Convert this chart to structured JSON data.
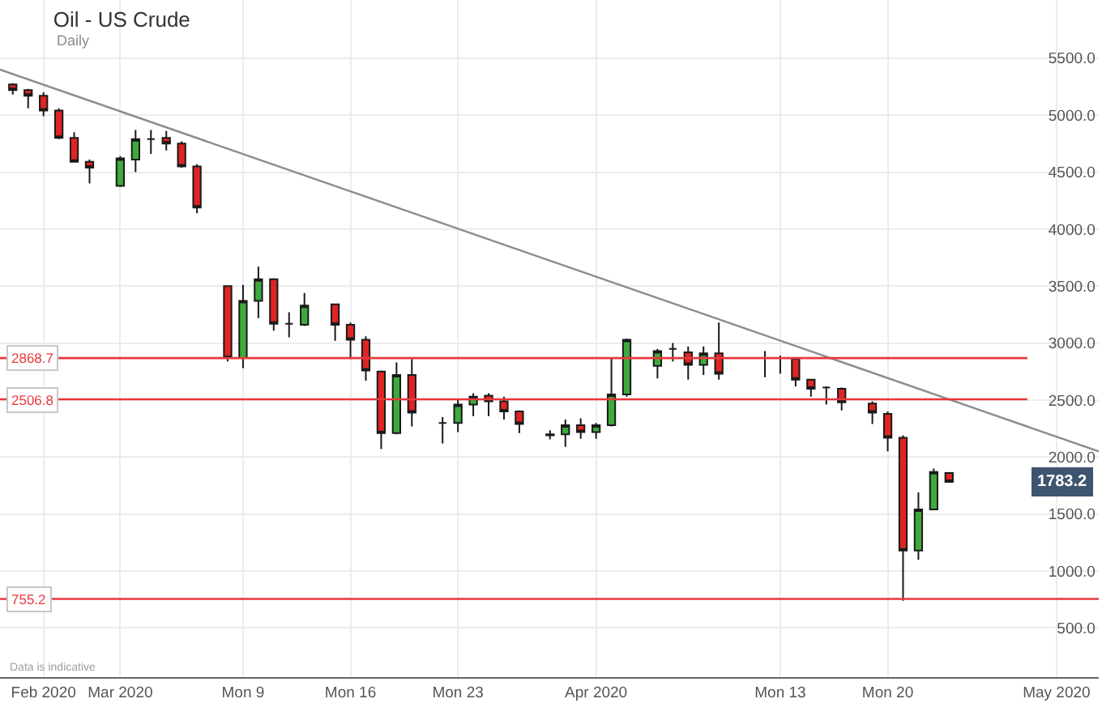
{
  "chart_data": {
    "type": "candlestick",
    "title": "Oil - US Crude",
    "subtitle": "Daily",
    "x": [
      "2020-02-23",
      "2020-02-24",
      "2020-02-25",
      "2020-02-26",
      "2020-02-27",
      "2020-02-28",
      "2020-03-01",
      "2020-03-02",
      "2020-03-03",
      "2020-03-04",
      "2020-03-05",
      "2020-03-06",
      "2020-03-08",
      "2020-03-09",
      "2020-03-10",
      "2020-03-11",
      "2020-03-12",
      "2020-03-13",
      "2020-03-15",
      "2020-03-16",
      "2020-03-17",
      "2020-03-18",
      "2020-03-19",
      "2020-03-20",
      "2020-03-22",
      "2020-03-23",
      "2020-03-24",
      "2020-03-25",
      "2020-03-26",
      "2020-03-27",
      "2020-03-29",
      "2020-03-30",
      "2020-03-31",
      "2020-04-01",
      "2020-04-02",
      "2020-04-03",
      "2020-04-05",
      "2020-04-06",
      "2020-04-07",
      "2020-04-08",
      "2020-04-09",
      "2020-04-12",
      "2020-04-13",
      "2020-04-14",
      "2020-04-15",
      "2020-04-16",
      "2020-04-17",
      "2020-04-19",
      "2020-04-20",
      "2020-04-21",
      "2020-04-22",
      "2020-04-23",
      "2020-04-24"
    ],
    "ohlc": [
      [
        5270,
        5280,
        5180,
        5220
      ],
      [
        5220,
        5230,
        5060,
        5170
      ],
      [
        5170,
        5200,
        4990,
        5040
      ],
      [
        5040,
        5060,
        4790,
        4800
      ],
      [
        4800,
        4850,
        4590,
        4590
      ],
      [
        4590,
        4610,
        4400,
        4540
      ],
      [
        4380,
        4640,
        4370,
        4620
      ],
      [
        4610,
        4870,
        4500,
        4790
      ],
      [
        4790,
        4870,
        4660,
        4790
      ],
      [
        4800,
        4860,
        4690,
        4750
      ],
      [
        4750,
        4770,
        4540,
        4550
      ],
      [
        4550,
        4570,
        4140,
        4190
      ],
      [
        3500,
        3500,
        2840,
        2870
      ],
      [
        2870,
        3510,
        2780,
        3370
      ],
      [
        3370,
        3670,
        3220,
        3560
      ],
      [
        3560,
        3570,
        3110,
        3170
      ],
      [
        3170,
        3270,
        3050,
        3170
      ],
      [
        3160,
        3440,
        3150,
        3330
      ],
      [
        3340,
        3340,
        3020,
        3160
      ],
      [
        3160,
        3180,
        2860,
        3030
      ],
      [
        3030,
        3060,
        2670,
        2760
      ],
      [
        2750,
        2760,
        2070,
        2210
      ],
      [
        2210,
        2830,
        2200,
        2720
      ],
      [
        2720,
        2860,
        2270,
        2390
      ],
      [
        2300,
        2350,
        2120,
        2300
      ],
      [
        2300,
        2500,
        2220,
        2460
      ],
      [
        2460,
        2560,
        2360,
        2530
      ],
      [
        2540,
        2560,
        2360,
        2490
      ],
      [
        2490,
        2530,
        2330,
        2400
      ],
      [
        2400,
        2410,
        2210,
        2290
      ],
      [
        2200,
        2235,
        2155,
        2190
      ],
      [
        2200,
        2330,
        2090,
        2280
      ],
      [
        2280,
        2340,
        2160,
        2220
      ],
      [
        2220,
        2300,
        2160,
        2280
      ],
      [
        2280,
        2870,
        2270,
        2550
      ],
      [
        2550,
        3040,
        2530,
        3030
      ],
      [
        2800,
        2950,
        2690,
        2930
      ],
      [
        2950,
        3000,
        2840,
        2950
      ],
      [
        2920,
        2970,
        2680,
        2810
      ],
      [
        2810,
        2970,
        2720,
        2910
      ],
      [
        2910,
        3180,
        2680,
        2730
      ],
      [
        2870,
        2930,
        2700,
        2870
      ],
      [
        2870,
        2890,
        2730,
        2870
      ],
      [
        2860,
        2870,
        2620,
        2680
      ],
      [
        2680,
        2680,
        2530,
        2600
      ],
      [
        2610,
        2620,
        2460,
        2610
      ],
      [
        2600,
        2610,
        2410,
        2480
      ],
      [
        2470,
        2490,
        2290,
        2390
      ],
      [
        2380,
        2400,
        2050,
        2170
      ],
      [
        2170,
        2190,
        740,
        1180
      ],
      [
        1180,
        1690,
        1100,
        1540
      ],
      [
        1540,
        1900,
        1540,
        1870
      ],
      [
        1860,
        1870,
        1775,
        1783.2
      ]
    ],
    "colors": [
      "#e02424",
      "#e02424",
      "#e02424",
      "#e02424",
      "#e02424",
      "#e02424",
      "#3daa3d",
      "#3daa3d",
      "#1a1a1a",
      "#e02424",
      "#e02424",
      "#e02424",
      "#e02424",
      "#3daa3d",
      "#3daa3d",
      "#e02424",
      "#1a1a1a",
      "#3daa3d",
      "#e02424",
      "#e02424",
      "#e02424",
      "#e02424",
      "#3daa3d",
      "#e02424",
      "#1a1a1a",
      "#3daa3d",
      "#3daa3d",
      "#e02424",
      "#e02424",
      "#e02424",
      "#1a1a1a",
      "#3daa3d",
      "#e02424",
      "#3daa3d",
      "#3daa3d",
      "#3daa3d",
      "#3daa3d",
      "#1a1a1a",
      "#e02424",
      "#3daa3d",
      "#e02424",
      "#1a1a1a",
      "#1a1a1a",
      "#e02424",
      "#e02424",
      "#1a1a1a",
      "#e02424",
      "#e02424",
      "#e02424",
      "#e02424",
      "#3daa3d",
      "#3daa3d",
      "#e02424"
    ],
    "series": [
      {
        "type": "line",
        "x": [
          "2020-02-22T04:00",
          "2020-05-03T18:00"
        ],
        "values": [
          5400,
          2050
        ],
        "color": "#8c8c8c"
      }
    ],
    "xlim": [
      "2020-02-22T04:00",
      "2020-05-03T18:00"
    ],
    "xticks": [
      {
        "value": "2020-02-25",
        "label": "Feb 2020"
      },
      {
        "value": "2020-03-01",
        "label": "Mar 2020"
      },
      {
        "value": "2020-03-09",
        "label": "Mon 9"
      },
      {
        "value": "2020-03-16",
        "label": "Mon 16"
      },
      {
        "value": "2020-03-23",
        "label": "Mon 23"
      },
      {
        "value": "2020-04-01",
        "label": "Apr 2020"
      },
      {
        "value": "2020-04-13",
        "label": "Mon 13"
      },
      {
        "value": "2020-04-20",
        "label": "Mon 20"
      },
      {
        "value": "2020-05-01",
        "label": "May 2020"
      }
    ],
    "ylim": [
      70,
      6010
    ],
    "yticks": [
      {
        "value": 500,
        "label": "500.0"
      },
      {
        "value": 1000,
        "label": "1000.0"
      },
      {
        "value": 1500,
        "label": "1500.0"
      },
      {
        "value": 2000,
        "label": "2000.0"
      },
      {
        "value": 2500,
        "label": "2500.0"
      },
      {
        "value": 3000,
        "label": "3000.0"
      },
      {
        "value": 3500,
        "label": "3500.0"
      },
      {
        "value": 4000,
        "label": "4000.0"
      },
      {
        "value": 4500,
        "label": "4500.0"
      },
      {
        "value": 5000,
        "label": "5000.0"
      },
      {
        "value": 5500,
        "label": "5500.0"
      }
    ],
    "ref_lines": [
      {
        "axis": "y",
        "value": 2868.7,
        "label": "2868.7",
        "color": "#e8383d"
      },
      {
        "axis": "y",
        "value": 2506.8,
        "label": "2506.8",
        "color": "#e8383d"
      },
      {
        "axis": "y",
        "value": 755.2,
        "label": "755.2",
        "color": "#e8383d"
      }
    ],
    "annotations": [
      {
        "text": "1783.2",
        "y": 1783.2
      },
      "Data is indicative"
    ],
    "grid": true
  }
}
